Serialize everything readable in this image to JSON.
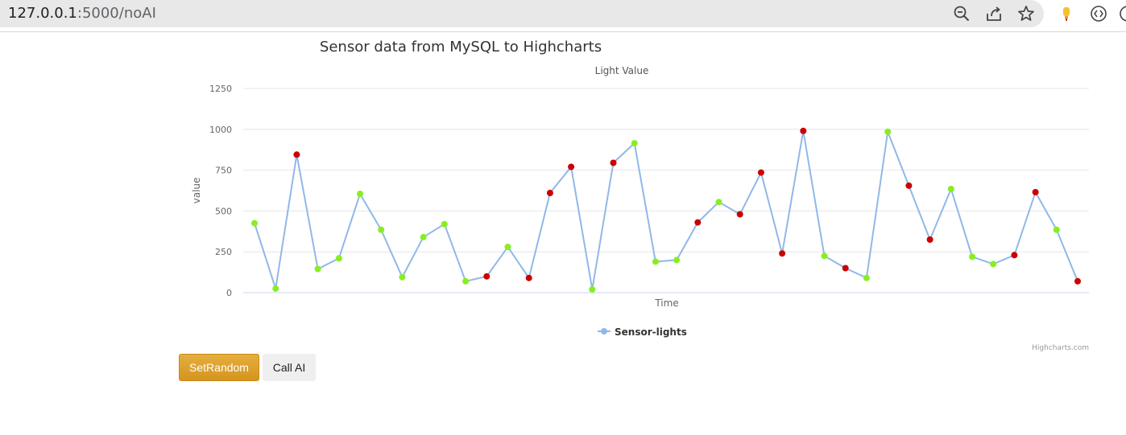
{
  "browser": {
    "url_host": "127.0.0.1",
    "url_rest": ":5000/noAI"
  },
  "buttons": {
    "set_random": "SetRandom",
    "call_ai": "Call AI"
  },
  "colors": {
    "line": "#90b8e8",
    "point_high_change": "#cc0000",
    "point_normal": "#88ee22",
    "gridline": "#e6e6e6"
  },
  "chart_data": {
    "type": "line",
    "title": "Sensor data from MySQL to Highcharts",
    "subtitle": "Light Value",
    "xlabel": "Time",
    "ylabel": "value",
    "ylim": [
      0,
      1250
    ],
    "yticks": [
      0,
      250,
      500,
      750,
      1000,
      1250
    ],
    "grid": true,
    "legend_position": "bottom-center",
    "credits": "Highcharts.com",
    "series": [
      {
        "name": "Sensor-lights",
        "values": [
          425,
          25,
          845,
          145,
          210,
          605,
          385,
          95,
          340,
          420,
          70,
          100,
          280,
          90,
          610,
          770,
          20,
          795,
          915,
          190,
          200,
          430,
          555,
          480,
          735,
          240,
          990,
          225,
          150,
          90,
          985,
          655,
          325,
          635,
          220,
          175,
          230,
          615,
          385,
          70
        ],
        "point_colors": [
          "#88ee22",
          "#88ee22",
          "#cc0000",
          "#88ee22",
          "#88ee22",
          "#88ee22",
          "#88ee22",
          "#88ee22",
          "#88ee22",
          "#88ee22",
          "#88ee22",
          "#cc0000",
          "#88ee22",
          "#cc0000",
          "#cc0000",
          "#cc0000",
          "#88ee22",
          "#cc0000",
          "#88ee22",
          "#88ee22",
          "#88ee22",
          "#cc0000",
          "#88ee22",
          "#cc0000",
          "#cc0000",
          "#cc0000",
          "#cc0000",
          "#88ee22",
          "#cc0000",
          "#88ee22",
          "#88ee22",
          "#cc0000",
          "#cc0000",
          "#88ee22",
          "#88ee22",
          "#88ee22",
          "#cc0000",
          "#cc0000",
          "#88ee22",
          "#cc0000"
        ]
      }
    ]
  }
}
